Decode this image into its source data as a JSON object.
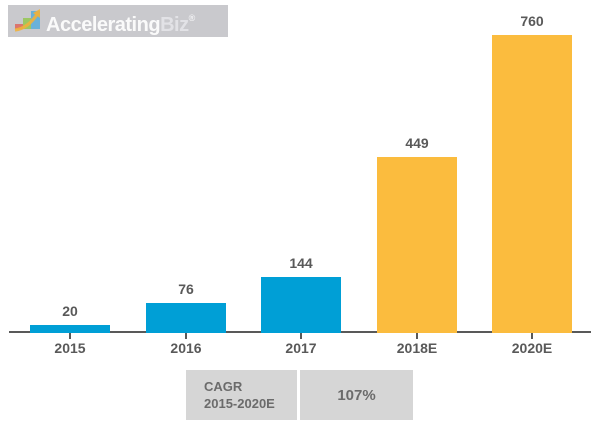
{
  "logo": {
    "brand_primary": "Accelerating",
    "brand_secondary": "Biz",
    "registered": "®",
    "icon": "ascending-bars-with-growth-arrow-icon"
  },
  "chart_data": {
    "type": "bar",
    "categories": [
      "2015",
      "2016",
      "2017",
      "2018E",
      "2020E"
    ],
    "values": [
      20,
      76,
      144,
      449,
      760
    ],
    "bar_colors": [
      "#009fd6",
      "#009fd6",
      "#009fd6",
      "#fbbc3e",
      "#fbbc3e"
    ],
    "value_labels": [
      "20",
      "76",
      "144",
      "449",
      "760"
    ],
    "title": "",
    "xlabel": "",
    "ylabel": "",
    "ylim": [
      0,
      760
    ],
    "grid": false,
    "legend": "none",
    "value_labels_shown": true
  },
  "colors": {
    "bar_blue": "#009fd6",
    "bar_orange": "#fbbc3e",
    "axis": "#595959",
    "label_text": "#595959",
    "table_bg": "#d6d6d6",
    "table_text": "#6b6b6b",
    "logo_bg": "#c9c9cd"
  },
  "cagr_table": {
    "label_line1": "CAGR",
    "label_line2": "2015-2020E",
    "value": "107%"
  }
}
